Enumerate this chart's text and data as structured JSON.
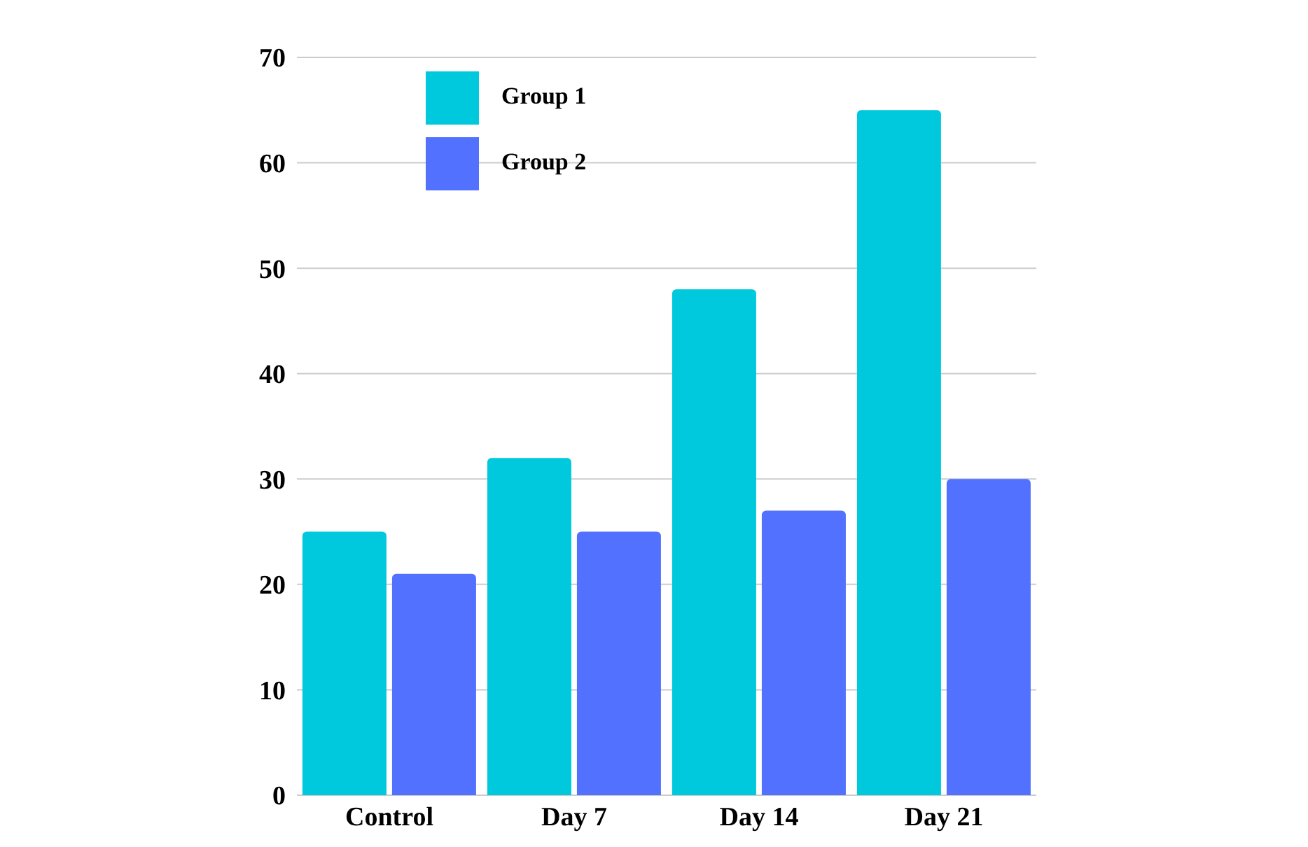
{
  "chart_data": {
    "type": "bar",
    "categories": [
      "Control",
      "Day 7",
      "Day 14",
      "Day 21"
    ],
    "series": [
      {
        "name": "Group 1",
        "color": "#00c9dd",
        "values": [
          25,
          32,
          48,
          65
        ]
      },
      {
        "name": "Group 2",
        "color": "#5271ff",
        "values": [
          21,
          25,
          27,
          30
        ]
      }
    ],
    "ylim": [
      0,
      70
    ],
    "yticks": [
      0,
      10,
      20,
      30,
      40,
      50,
      60,
      70
    ],
    "grid": "y",
    "legend": "top left"
  }
}
